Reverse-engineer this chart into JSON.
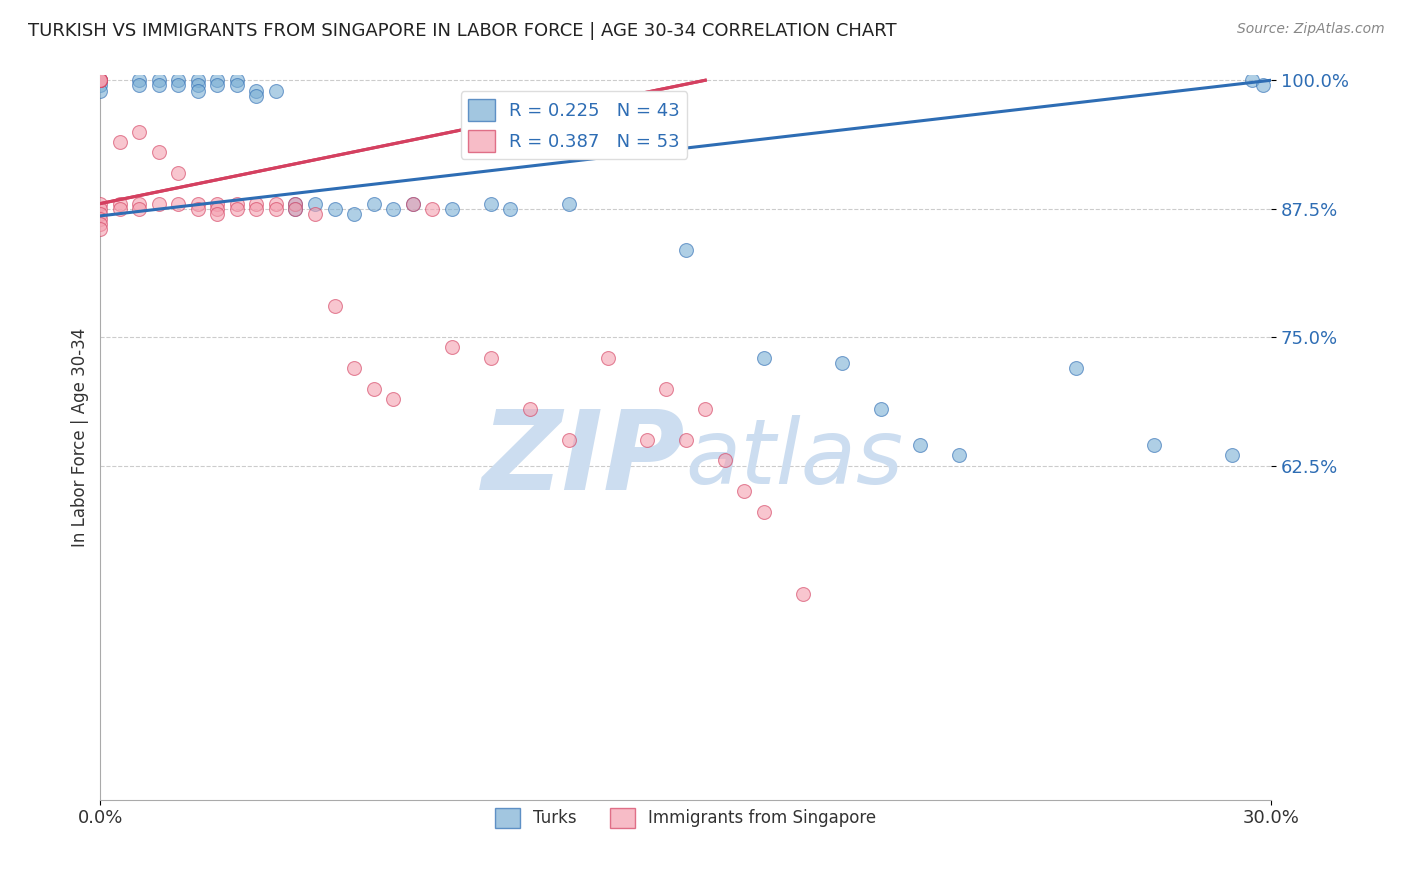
{
  "title": "TURKISH VS IMMIGRANTS FROM SINGAPORE IN LABOR FORCE | AGE 30-34 CORRELATION CHART",
  "source": "Source: ZipAtlas.com",
  "ylabel": "In Labor Force | Age 30-34",
  "xlim": [
    0.0,
    0.3
  ],
  "ylim": [
    0.3,
    1.005
  ],
  "x_ticks": [
    0.0,
    0.3
  ],
  "x_tick_labels": [
    "0.0%",
    "30.0%"
  ],
  "y_ticks": [
    0.625,
    0.75,
    0.875,
    1.0
  ],
  "y_tick_labels": [
    "62.5%",
    "75.0%",
    "87.5%",
    "100.0%"
  ],
  "blue_color": "#7bafd4",
  "pink_color": "#f4a0b0",
  "blue_line_color": "#2e6db4",
  "pink_line_color": "#d44060",
  "blue_scatter_x": [
    0.0,
    0.0,
    0.0,
    0.0,
    0.01,
    0.01,
    0.015,
    0.015,
    0.02,
    0.02,
    0.025,
    0.025,
    0.025,
    0.03,
    0.03,
    0.035,
    0.035,
    0.04,
    0.04,
    0.045,
    0.05,
    0.05,
    0.055,
    0.06,
    0.065,
    0.07,
    0.075,
    0.08,
    0.09,
    0.1,
    0.105,
    0.12,
    0.15,
    0.17,
    0.19,
    0.2,
    0.21,
    0.22,
    0.25,
    0.27,
    0.29,
    0.295,
    0.298
  ],
  "blue_scatter_y": [
    1.0,
    1.0,
    0.995,
    0.99,
    1.0,
    0.995,
    1.0,
    0.995,
    1.0,
    0.995,
    1.0,
    0.995,
    0.99,
    1.0,
    0.995,
    1.0,
    0.995,
    0.99,
    0.985,
    0.99,
    0.88,
    0.875,
    0.88,
    0.875,
    0.87,
    0.88,
    0.875,
    0.88,
    0.875,
    0.88,
    0.875,
    0.88,
    0.835,
    0.73,
    0.725,
    0.68,
    0.645,
    0.635,
    0.72,
    0.645,
    0.635,
    1.0,
    0.995
  ],
  "pink_scatter_x": [
    0.0,
    0.0,
    0.0,
    0.0,
    0.0,
    0.0,
    0.0,
    0.0,
    0.0,
    0.0,
    0.005,
    0.005,
    0.005,
    0.01,
    0.01,
    0.01,
    0.015,
    0.015,
    0.02,
    0.02,
    0.025,
    0.025,
    0.03,
    0.03,
    0.03,
    0.035,
    0.035,
    0.04,
    0.04,
    0.045,
    0.045,
    0.05,
    0.05,
    0.055,
    0.06,
    0.065,
    0.07,
    0.075,
    0.08,
    0.085,
    0.09,
    0.1,
    0.11,
    0.12,
    0.13,
    0.14,
    0.145,
    0.15,
    0.155,
    0.16,
    0.165,
    0.17,
    0.18
  ],
  "pink_scatter_y": [
    1.0,
    1.0,
    1.0,
    1.0,
    0.88,
    0.875,
    0.87,
    0.865,
    0.86,
    0.855,
    0.94,
    0.88,
    0.875,
    0.95,
    0.88,
    0.875,
    0.93,
    0.88,
    0.91,
    0.88,
    0.88,
    0.875,
    0.88,
    0.875,
    0.87,
    0.88,
    0.875,
    0.88,
    0.875,
    0.88,
    0.875,
    0.88,
    0.875,
    0.87,
    0.78,
    0.72,
    0.7,
    0.69,
    0.88,
    0.875,
    0.74,
    0.73,
    0.68,
    0.65,
    0.73,
    0.65,
    0.7,
    0.65,
    0.68,
    0.63,
    0.6,
    0.58,
    0.5
  ],
  "blue_trend_x": [
    0.0,
    0.3
  ],
  "blue_trend_y": [
    0.868,
    1.0
  ],
  "pink_trend_x": [
    0.0,
    0.155
  ],
  "pink_trend_y": [
    0.88,
    1.0
  ],
  "watermark_zip": "ZIP",
  "watermark_atlas": "atlas",
  "watermark_color": "#ccddf0",
  "background_color": "#ffffff",
  "grid_color": "#cccccc"
}
